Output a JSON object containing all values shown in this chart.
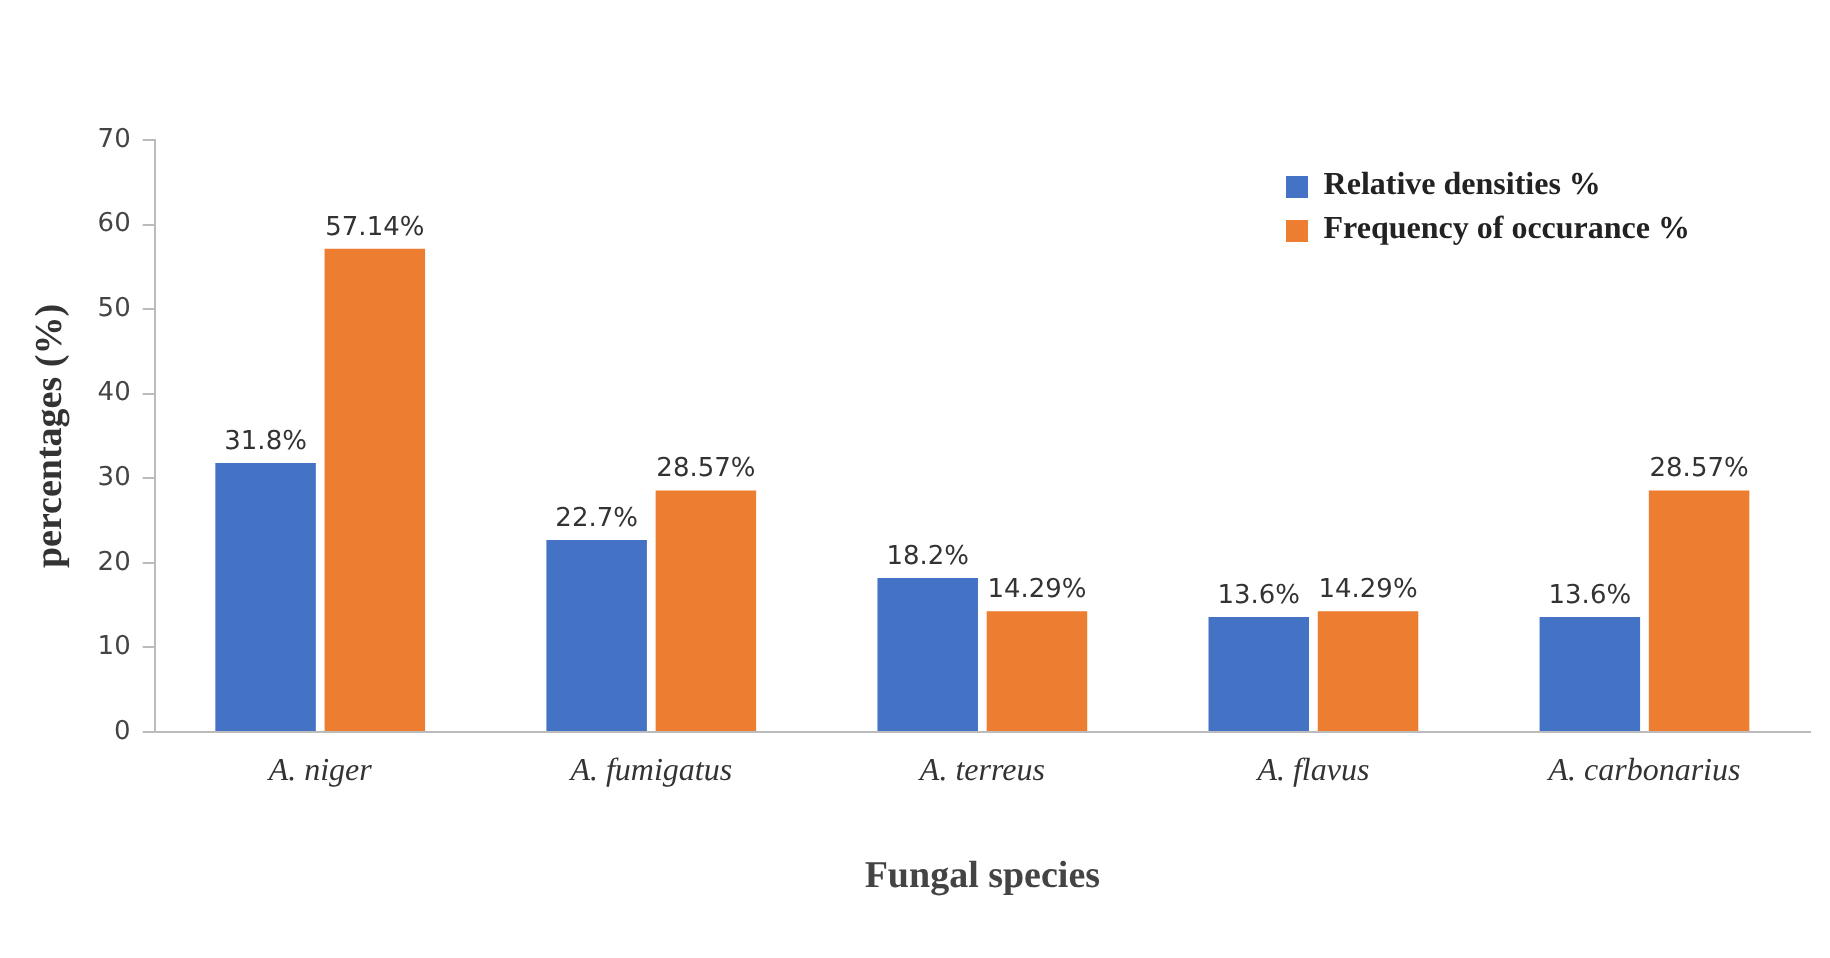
{
  "chart_data": {
    "type": "bar",
    "xlabel": "Fungal species",
    "ylabel": "percentages (%)",
    "categories": [
      "A. niger",
      "A. fumigatus",
      "A. terreus",
      "A. flavus",
      "A. carbonarius"
    ],
    "series": [
      {
        "name": "Relative densities %",
        "color": "#4472c4",
        "values": [
          31.8,
          22.7,
          18.2,
          13.6,
          13.6
        ],
        "value_labels": [
          "31.8%",
          "22.7%",
          "18.2%",
          "13.6%",
          "13.6%"
        ]
      },
      {
        "name": "Frequency of occurance %",
        "color": "#ed7d31",
        "values": [
          57.14,
          28.57,
          14.29,
          14.29,
          28.57
        ],
        "value_labels": [
          "57.14%",
          "28.57%",
          "14.29%",
          "14.29%",
          "28.57%"
        ]
      }
    ],
    "ylim": [
      0,
      70
    ],
    "yticks": [
      0,
      10,
      20,
      30,
      40,
      50,
      60,
      70
    ],
    "grid": false,
    "legend": "top right"
  }
}
